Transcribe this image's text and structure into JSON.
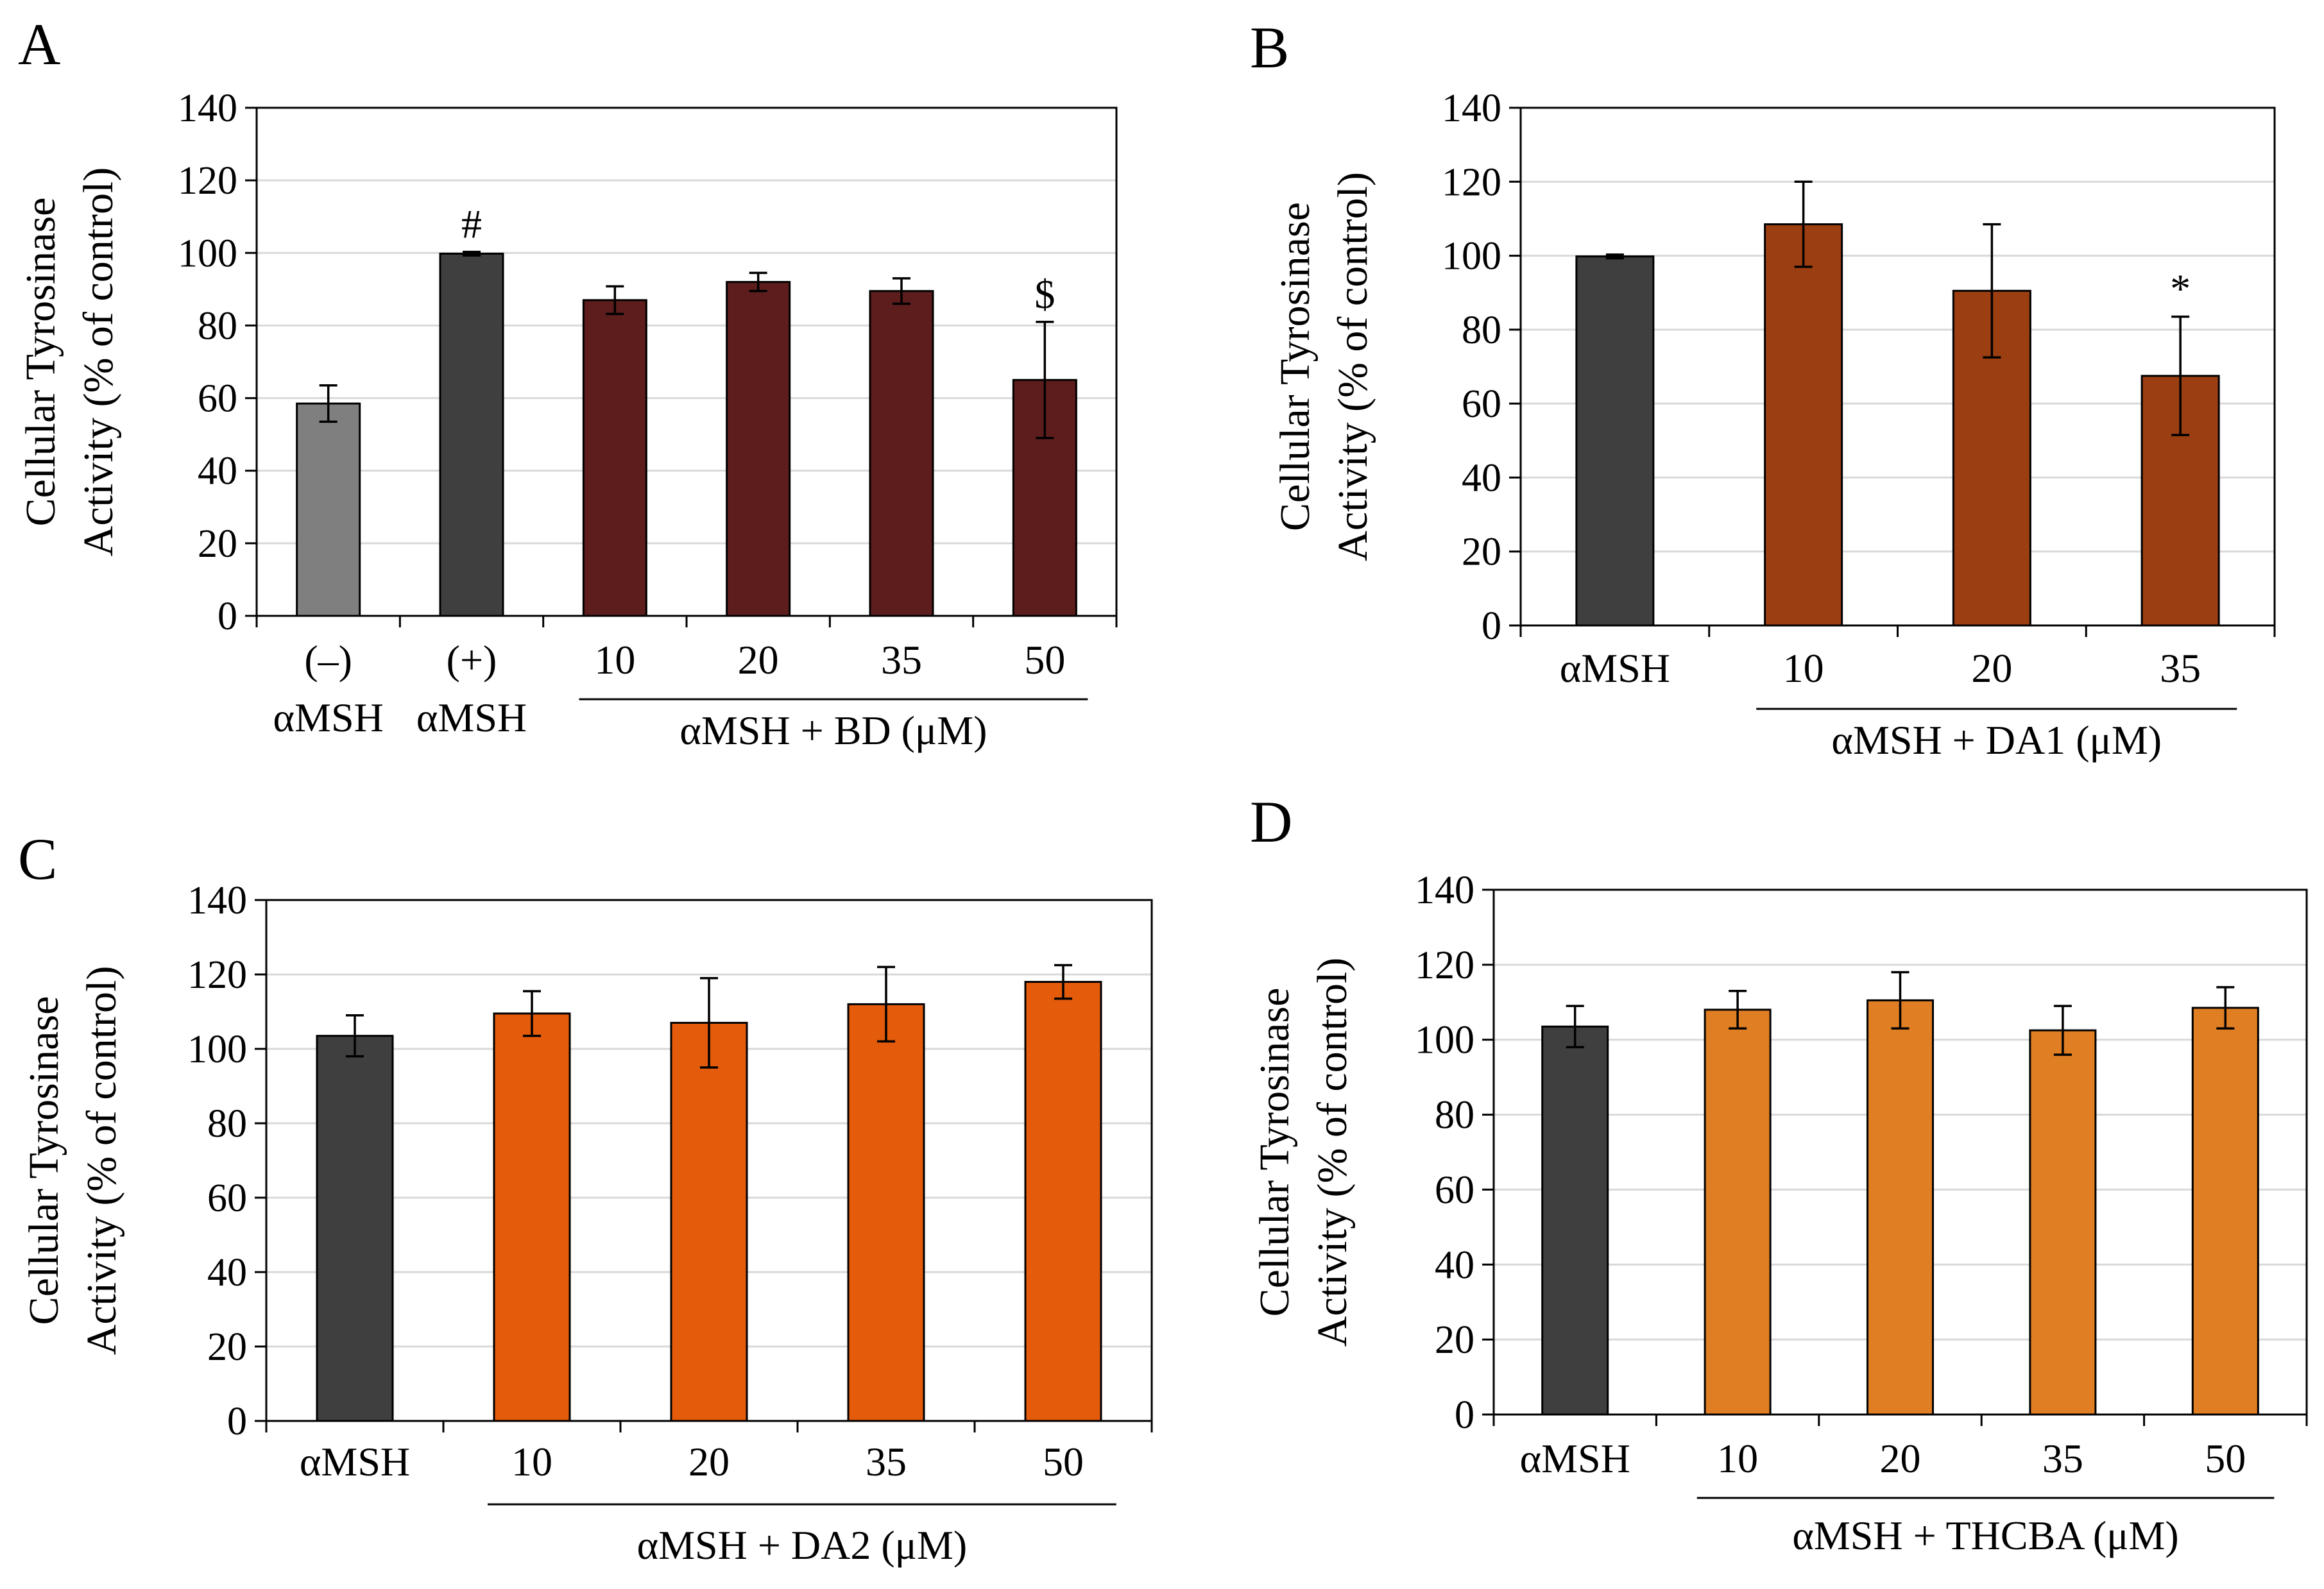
{
  "chart_data": [
    {
      "panel": "A",
      "type": "bar",
      "ylabel_line1": "Cellular Tyrosinase",
      "ylabel_line2": "Activity (% of control)",
      "ylim": [
        0,
        140
      ],
      "yticks": [
        0,
        20,
        40,
        60,
        80,
        100,
        120,
        140
      ],
      "grid": true,
      "categories": [
        "(–)\nαMSH",
        "(+)\nαMSH",
        "10",
        "20",
        "35",
        "50"
      ],
      "values": [
        58.5,
        99.8,
        87,
        92,
        89.5,
        65
      ],
      "errors": [
        5,
        0.5,
        3.8,
        2.5,
        3.5,
        16
      ],
      "colors": [
        "#7f7f7f",
        "#3f3f3f",
        "#5c1d1c",
        "#5c1d1c",
        "#5c1d1c",
        "#5c1d1c"
      ],
      "annotations": [
        "",
        "#",
        "",
        "",
        "",
        "$"
      ],
      "group_label": "αMSH + BD (μM)",
      "group_start": 2
    },
    {
      "panel": "B",
      "type": "bar",
      "ylabel_line1": "Cellular Tyrosinase",
      "ylabel_line2": "Activity (% of control)",
      "ylim": [
        0,
        140
      ],
      "yticks": [
        0,
        20,
        40,
        60,
        80,
        100,
        120,
        140
      ],
      "grid": true,
      "categories": [
        "αMSH",
        "10",
        "20",
        "35"
      ],
      "values": [
        99.8,
        108.5,
        90.5,
        67.5
      ],
      "errors": [
        0.5,
        11.5,
        18,
        16
      ],
      "colors": [
        "#3f3f3f",
        "#9b3f12",
        "#9b3f12",
        "#9b3f12"
      ],
      "annotations": [
        "",
        "",
        "",
        "*"
      ],
      "group_label": "αMSH + DA1 (μM)",
      "group_start": 1
    },
    {
      "panel": "C",
      "type": "bar",
      "ylabel_line1": "Cellular Tyrosinase",
      "ylabel_line2": "Activity (% of control)",
      "ylim": [
        0,
        140
      ],
      "yticks": [
        0,
        20,
        40,
        60,
        80,
        100,
        120,
        140
      ],
      "grid": true,
      "categories": [
        "αMSH",
        "10",
        "20",
        "35",
        "50"
      ],
      "values": [
        103.5,
        109.5,
        107,
        112,
        118
      ],
      "errors": [
        5.5,
        6,
        12,
        10,
        4.5
      ],
      "colors": [
        "#3f3f3f",
        "#e35b0b",
        "#e35b0b",
        "#e35b0b",
        "#e35b0b"
      ],
      "annotations": [
        "",
        "",
        "",
        "",
        ""
      ],
      "group_label": "αMSH + DA2 (μM)",
      "group_start": 1
    },
    {
      "panel": "D",
      "type": "bar",
      "ylabel_line1": "Cellular Tyrosinase",
      "ylabel_line2": "Activity (% of control)",
      "ylim": [
        0,
        140
      ],
      "yticks": [
        0,
        20,
        40,
        60,
        80,
        100,
        120,
        140
      ],
      "grid": true,
      "categories": [
        "αMSH",
        "10",
        "20",
        "35",
        "50"
      ],
      "values": [
        103.5,
        108,
        110.5,
        102.5,
        108.5
      ],
      "errors": [
        5.5,
        5,
        7.5,
        6.5,
        5.5
      ],
      "colors": [
        "#3f3f3f",
        "#e07e24",
        "#e07e24",
        "#e07e24",
        "#e07e24"
      ],
      "annotations": [
        "",
        "",
        "",
        "",
        ""
      ],
      "group_label": "αMSH + THCBA (μM)",
      "group_start": 1
    }
  ]
}
